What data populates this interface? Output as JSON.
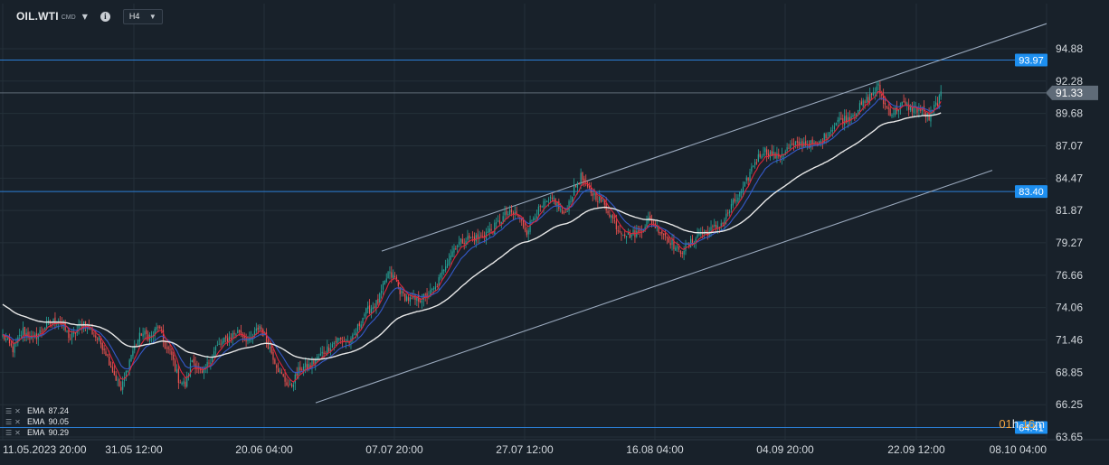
{
  "header": {
    "symbol": "OIL.WTI",
    "symbol_type": "CMD",
    "timeframe": "H4",
    "icons": [
      "chevron-down-icon",
      "info-icon"
    ]
  },
  "legend": [
    {
      "name": "EMA",
      "value": "87.24"
    },
    {
      "name": "EMA",
      "value": "90.05"
    },
    {
      "name": "EMA",
      "value": "90.29"
    }
  ],
  "timer": {
    "hours": "01",
    "h_unit": "h",
    "minutes": "16",
    "m_unit": "m"
  },
  "colors": {
    "background": "#18212a",
    "grid": "#243039",
    "bull": "#26a69a",
    "bear": "#ef5350",
    "ema_fast": "#e0243a",
    "ema_mid": "#3559c9",
    "ema_slow": "#e8e8e8",
    "level_line": "#2b7fd6",
    "level_label": "#1d8ff0",
    "trendline": "#9aa9bd",
    "current_price": "#5f6b78"
  },
  "chart_data": {
    "type": "candlestick",
    "symbol": "OIL.WTI",
    "timeframe": "H4",
    "y_axis_ticks": [
      "94.88",
      "92.28",
      "89.68",
      "87.07",
      "84.47",
      "81.87",
      "79.27",
      "76.66",
      "74.06",
      "71.46",
      "68.85",
      "66.25",
      "63.65"
    ],
    "x_axis_ticks": [
      "11.05.2023  20:00",
      "31.05  12:00",
      "20.06  04:00",
      "07.07  20:00",
      "27.07  12:00",
      "16.08  04:00",
      "04.09  20:00",
      "22.09  12:00",
      "08.10  04:00"
    ],
    "ylim": [
      63.0,
      97.3
    ],
    "price_levels": [
      {
        "label": "93.97",
        "value": 93.97,
        "kind": "horizontal"
      },
      {
        "label": "83.40",
        "value": 83.4,
        "kind": "horizontal"
      },
      {
        "label": "64.41",
        "value": 64.41,
        "kind": "horizontal"
      }
    ],
    "current_price": {
      "label": "91.33",
      "value": 91.33
    },
    "trend_channel": [
      {
        "name": "upper",
        "points": [
          {
            "x": "06.07  08:00",
            "y": 78.6
          },
          {
            "x": "08.10  00:00",
            "y": 96.9
          }
        ]
      },
      {
        "name": "lower",
        "points": [
          {
            "x": "20.06  08:00",
            "y": 66.4
          },
          {
            "x": "02.10  12:00",
            "y": 85.1
          }
        ]
      }
    ],
    "emas": [
      {
        "label": "EMA 87.24",
        "value": 87.24
      },
      {
        "label": "EMA 90.05",
        "value": 90.05
      },
      {
        "label": "EMA 90.29",
        "value": 90.29
      }
    ],
    "price_path": [
      {
        "i": 0,
        "y": 71.8
      },
      {
        "i": 6,
        "y": 70.7
      },
      {
        "i": 12,
        "y": 72.2
      },
      {
        "i": 18,
        "y": 71.5
      },
      {
        "i": 26,
        "y": 72.7
      },
      {
        "i": 33,
        "y": 73.1
      },
      {
        "i": 40,
        "y": 71.6
      },
      {
        "i": 48,
        "y": 72.9
      },
      {
        "i": 54,
        "y": 71.9
      },
      {
        "i": 60,
        "y": 70.8
      },
      {
        "i": 66,
        "y": 68.7
      },
      {
        "i": 70,
        "y": 67.4
      },
      {
        "i": 76,
        "y": 70.3
      },
      {
        "i": 82,
        "y": 72.0
      },
      {
        "i": 88,
        "y": 71.7
      },
      {
        "i": 92,
        "y": 72.6
      },
      {
        "i": 96,
        "y": 71.0
      },
      {
        "i": 100,
        "y": 70.2
      },
      {
        "i": 104,
        "y": 68.3
      },
      {
        "i": 108,
        "y": 67.8
      },
      {
        "i": 112,
        "y": 69.9
      },
      {
        "i": 118,
        "y": 68.6
      },
      {
        "i": 126,
        "y": 70.8
      },
      {
        "i": 134,
        "y": 71.7
      },
      {
        "i": 140,
        "y": 72.2
      },
      {
        "i": 146,
        "y": 71.3
      },
      {
        "i": 152,
        "y": 72.6
      },
      {
        "i": 158,
        "y": 70.8
      },
      {
        "i": 164,
        "y": 68.8
      },
      {
        "i": 170,
        "y": 67.6
      },
      {
        "i": 176,
        "y": 69.2
      },
      {
        "i": 182,
        "y": 69.4
      },
      {
        "i": 190,
        "y": 70.5
      },
      {
        "i": 198,
        "y": 71.5
      },
      {
        "i": 206,
        "y": 71.3
      },
      {
        "i": 214,
        "y": 73.6
      },
      {
        "i": 222,
        "y": 74.5
      },
      {
        "i": 228,
        "y": 76.8
      },
      {
        "i": 232,
        "y": 76.4
      },
      {
        "i": 236,
        "y": 75.1
      },
      {
        "i": 242,
        "y": 74.6
      },
      {
        "i": 250,
        "y": 74.9
      },
      {
        "i": 256,
        "y": 75.6
      },
      {
        "i": 262,
        "y": 77.6
      },
      {
        "i": 268,
        "y": 79.1
      },
      {
        "i": 274,
        "y": 79.6
      },
      {
        "i": 282,
        "y": 79.7
      },
      {
        "i": 290,
        "y": 80.4
      },
      {
        "i": 298,
        "y": 81.6
      },
      {
        "i": 304,
        "y": 81.6
      },
      {
        "i": 310,
        "y": 80.2
      },
      {
        "i": 314,
        "y": 81.4
      },
      {
        "i": 320,
        "y": 82.3
      },
      {
        "i": 326,
        "y": 82.8
      },
      {
        "i": 332,
        "y": 81.4
      },
      {
        "i": 338,
        "y": 83.6
      },
      {
        "i": 342,
        "y": 84.6
      },
      {
        "i": 346,
        "y": 83.6
      },
      {
        "i": 352,
        "y": 82.9
      },
      {
        "i": 358,
        "y": 81.9
      },
      {
        "i": 364,
        "y": 80.4
      },
      {
        "i": 370,
        "y": 79.9
      },
      {
        "i": 376,
        "y": 80.1
      },
      {
        "i": 382,
        "y": 81.1
      },
      {
        "i": 388,
        "y": 80.4
      },
      {
        "i": 394,
        "y": 79.6
      },
      {
        "i": 400,
        "y": 78.5
      },
      {
        "i": 406,
        "y": 79.1
      },
      {
        "i": 412,
        "y": 80.0
      },
      {
        "i": 418,
        "y": 80.2
      },
      {
        "i": 426,
        "y": 80.9
      },
      {
        "i": 432,
        "y": 82.4
      },
      {
        "i": 438,
        "y": 83.5
      },
      {
        "i": 444,
        "y": 85.6
      },
      {
        "i": 450,
        "y": 86.7
      },
      {
        "i": 458,
        "y": 86.2
      },
      {
        "i": 466,
        "y": 87.0
      },
      {
        "i": 474,
        "y": 87.3
      },
      {
        "i": 482,
        "y": 87.1
      },
      {
        "i": 488,
        "y": 88.1
      },
      {
        "i": 494,
        "y": 89.1
      },
      {
        "i": 500,
        "y": 89.3
      },
      {
        "i": 508,
        "y": 90.3
      },
      {
        "i": 514,
        "y": 91.2
      },
      {
        "i": 518,
        "y": 91.8
      },
      {
        "i": 522,
        "y": 90.3
      },
      {
        "i": 526,
        "y": 89.7
      },
      {
        "i": 532,
        "y": 90.4
      },
      {
        "i": 538,
        "y": 90.1
      },
      {
        "i": 544,
        "y": 89.9
      },
      {
        "i": 548,
        "y": 89.3
      },
      {
        "i": 552,
        "y": 90.4
      },
      {
        "i": 555,
        "y": 91.1
      }
    ]
  }
}
